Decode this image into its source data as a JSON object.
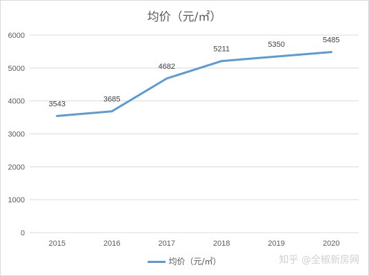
{
  "chart_data": {
    "type": "line",
    "title": "均价（元/㎡）",
    "categories": [
      "2015",
      "2016",
      "2017",
      "2018",
      "2019",
      "2020"
    ],
    "series": [
      {
        "name": "均价（元/㎡）",
        "values": [
          3543,
          3685,
          4682,
          5211,
          5350,
          5485
        ],
        "color": "#5b9bd5"
      }
    ],
    "yticks": [
      "0",
      "1000",
      "2000",
      "3000",
      "4000",
      "5000",
      "6000"
    ],
    "ylim": [
      0,
      6000
    ],
    "grid": true,
    "legend": "bottom",
    "xlabel": "",
    "ylabel": ""
  },
  "watermark": "知乎 @全椒新房网"
}
